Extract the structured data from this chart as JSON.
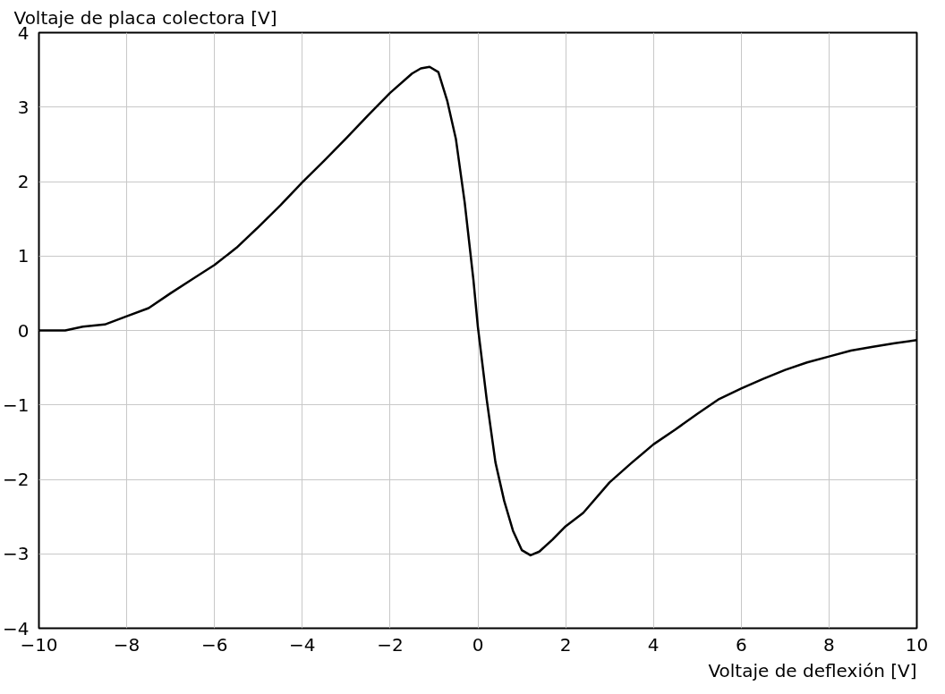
{
  "chart_data": {
    "type": "line",
    "xlabel": "Voltaje de deflexión [V]",
    "ylabel": "Voltaje de placa colectora [V]",
    "x": [
      -10,
      -9.4,
      -9,
      -8.5,
      -8,
      -7.5,
      -7,
      -6.5,
      -6,
      -5.5,
      -5,
      -4.5,
      -4,
      -3.5,
      -3,
      -2.5,
      -2,
      -1.5,
      -1.3,
      -1.1,
      -0.9,
      -0.7,
      -0.5,
      -0.3,
      -0.1,
      0,
      0.2,
      0.4,
      0.6,
      0.8,
      1.0,
      1.2,
      1.4,
      1.7,
      2,
      2.4,
      3,
      3.5,
      4,
      4.5,
      5,
      5.5,
      6,
      6.5,
      7,
      7.5,
      8,
      8.5,
      9,
      9.5,
      10
    ],
    "series": [
      {
        "color": "#000000",
        "values": [
          0,
          0,
          0.05,
          0.08,
          0.19,
          0.3,
          0.5,
          0.69,
          0.88,
          1.11,
          1.39,
          1.68,
          1.99,
          2.28,
          2.58,
          2.89,
          3.19,
          3.45,
          3.52,
          3.54,
          3.47,
          3.09,
          2.57,
          1.72,
          0.67,
          0.05,
          -0.92,
          -1.77,
          -2.29,
          -2.69,
          -2.95,
          -3.02,
          -2.97,
          -2.81,
          -2.63,
          -2.45,
          -2.04,
          -1.78,
          -1.53,
          -1.33,
          -1.12,
          -0.92,
          -0.78,
          -0.65,
          -0.53,
          -0.43,
          -0.35,
          -0.27,
          -0.22,
          -0.17,
          -0.13
        ]
      }
    ],
    "xlim": [
      -10,
      10
    ],
    "ylim": [
      -4,
      4
    ],
    "xticks": [
      -10,
      -8,
      -6,
      -4,
      -2,
      0,
      2,
      4,
      6,
      8,
      10
    ],
    "yticks": [
      -4,
      -3,
      -2,
      -1,
      0,
      1,
      2,
      3,
      4
    ],
    "grid": true,
    "marker": "none",
    "line_style": "solid"
  }
}
